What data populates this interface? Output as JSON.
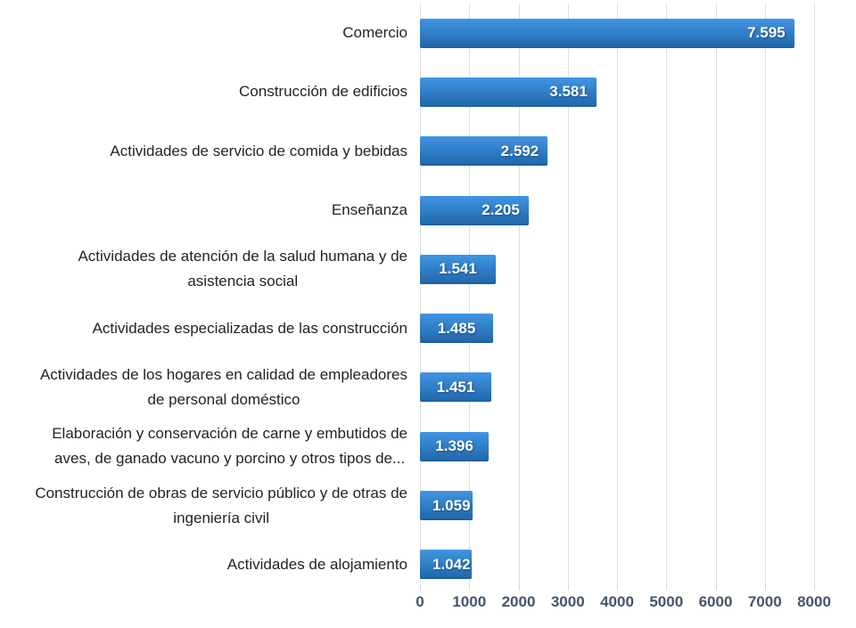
{
  "chart_data": {
    "type": "bar",
    "orientation": "horizontal",
    "title": "",
    "categories": [
      "Comercio",
      "Construcción de edificios",
      "Actividades de servicio de comida y bebidas",
      "Enseñanza",
      "Actividades de atención de la salud humana y de\nasistencia social",
      "Actividades especializadas de las construcción",
      "Actividades de los hogares en calidad de empleadores\nde personal doméstico",
      "Elaboración y conservación de carne y embutidos de\naves, de ganado vacuno y porcino y otros tipos de...",
      "Construcción de obras de servicio público y de otras de\ningeniería civil",
      "Actividades de alojamiento"
    ],
    "values": [
      7595,
      3581,
      2592,
      2205,
      1541,
      1485,
      1451,
      1396,
      1059,
      1042
    ],
    "value_labels": [
      "7.595",
      "3.581",
      "2.592",
      "2.205",
      "1.541",
      "1.485",
      "1.451",
      "1.396",
      "1.059",
      "1.042"
    ],
    "x_ticks": [
      "0",
      "1000",
      "2000",
      "3000",
      "4000",
      "5000",
      "6000",
      "7000",
      "8000"
    ],
    "xlim": [
      0,
      8000
    ],
    "grid": true,
    "legend": false,
    "colors": {
      "bar_gradient_top": "#4095E4",
      "bar_gradient_bottom": "#2166A8",
      "gridline": "#DBDFE6",
      "tick": "#D3D8DF",
      "axis_label_text": "#44546A",
      "category_label_text": "#232323",
      "value_label_text": "#FFFFFF",
      "background": "#FFFFFF"
    }
  }
}
